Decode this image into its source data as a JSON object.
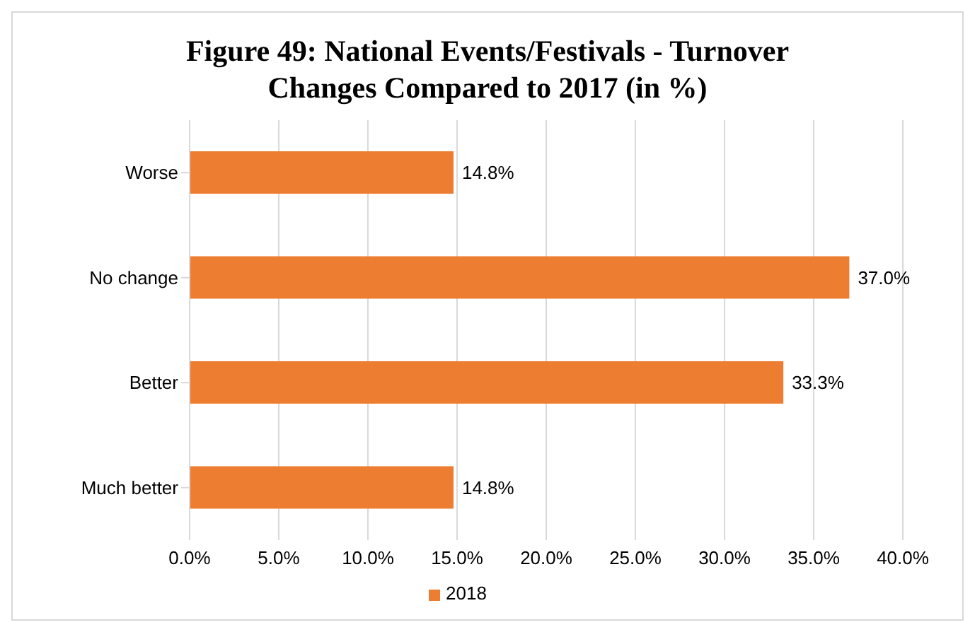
{
  "chart_data": {
    "type": "bar",
    "orientation": "horizontal",
    "title": "Figure 49: National Events/Festivals - Turnover Changes Compared to 2017 (in %)",
    "categories": [
      "Worse",
      "No change",
      "Better",
      "Much better"
    ],
    "series": [
      {
        "name": "2018",
        "color": "#ed7d31",
        "values": [
          14.8,
          37.0,
          33.3,
          14.8
        ],
        "value_labels": [
          "14.8%",
          "37.0%",
          "33.3%",
          "14.8%"
        ]
      }
    ],
    "xlim": [
      0,
      40
    ],
    "xticks": [
      {
        "value": 0,
        "label": "0.0%"
      },
      {
        "value": 5,
        "label": "5.0%"
      },
      {
        "value": 10,
        "label": "10.0%"
      },
      {
        "value": 15,
        "label": "15.0%"
      },
      {
        "value": 20,
        "label": "20.0%"
      },
      {
        "value": 25,
        "label": "25.0%"
      },
      {
        "value": 30,
        "label": "30.0%"
      },
      {
        "value": 35,
        "label": "35.0%"
      },
      {
        "value": 40,
        "label": "40.0%"
      }
    ],
    "grid": "x",
    "legend": "bottom"
  }
}
